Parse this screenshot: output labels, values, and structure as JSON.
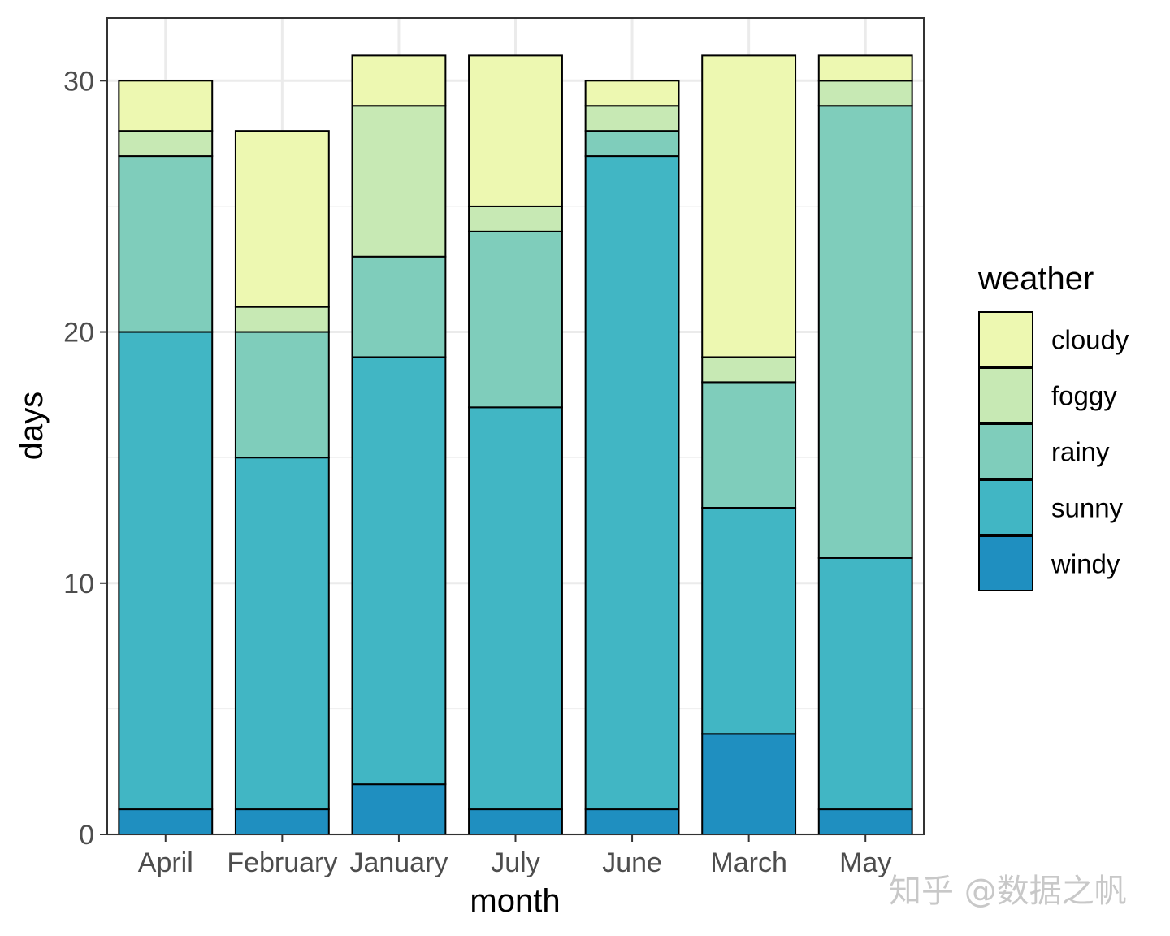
{
  "chart_data": {
    "type": "bar",
    "stacked": true,
    "categories": [
      "April",
      "February",
      "January",
      "July",
      "June",
      "March",
      "May"
    ],
    "series": [
      {
        "name": "windy",
        "color": "#1f8fc0",
        "values": [
          1,
          1,
          2,
          1,
          1,
          4,
          1
        ]
      },
      {
        "name": "sunny",
        "color": "#41b6c4",
        "values": [
          19,
          14,
          17,
          16,
          26,
          9,
          10
        ]
      },
      {
        "name": "rainy",
        "color": "#7fcdbb",
        "values": [
          7,
          5,
          4,
          7,
          1,
          5,
          18
        ]
      },
      {
        "name": "foggy",
        "color": "#c7e9b4",
        "values": [
          1,
          1,
          6,
          1,
          1,
          1,
          1
        ]
      },
      {
        "name": "cloudy",
        "color": "#edf8b1",
        "values": [
          2,
          7,
          2,
          6,
          1,
          12,
          1
        ]
      }
    ],
    "xlabel": "month",
    "ylabel": "days",
    "ylim": [
      0,
      32.5
    ],
    "yticks": [
      0,
      10,
      20,
      30
    ],
    "grid": true,
    "legend": {
      "title": "weather",
      "placement": "right",
      "order": [
        "cloudy",
        "foggy",
        "rainy",
        "sunny",
        "windy"
      ]
    }
  },
  "watermark": "知乎 @数据之帆"
}
